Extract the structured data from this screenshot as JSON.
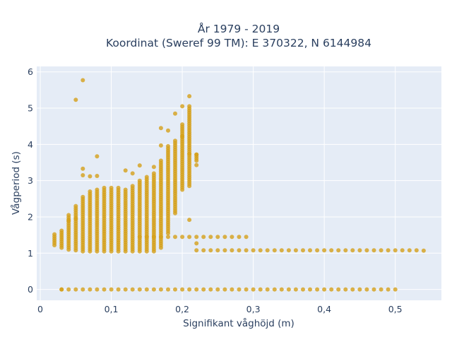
{
  "chart_data": {
    "type": "scatter",
    "title_line1": "År 1979 - 2019",
    "title_line2": "Koordinat (Sweref 99 TM): E 370322, N 6144984",
    "xlabel": "Signifikant våghöjd (m)",
    "ylabel": "Vågperiod (s)",
    "xlim": [
      -0.005,
      0.565
    ],
    "ylim": [
      -0.3,
      6.15
    ],
    "x_ticks": [
      0,
      0.1,
      0.2,
      0.3,
      0.4,
      0.5
    ],
    "x_tick_labels": [
      "0",
      "0,1",
      "0,2",
      "0,3",
      "0,4",
      "0,5"
    ],
    "y_ticks": [
      0,
      1,
      2,
      3,
      4,
      5,
      6
    ],
    "y_tick_labels": [
      "0",
      "1",
      "2",
      "3",
      "4",
      "5",
      "6"
    ],
    "grid": true,
    "colors": {
      "marker": "#d4a01a",
      "plot_bg": "#e5ecf6",
      "grid": "#ffffff"
    },
    "column_ranges": [
      [
        0.02,
        1.22,
        1.52
      ],
      [
        0.03,
        1.15,
        1.62
      ],
      [
        0.04,
        1.1,
        2.05
      ],
      [
        0.05,
        1.08,
        2.3
      ],
      [
        0.06,
        1.05,
        2.55
      ],
      [
        0.07,
        1.05,
        2.7
      ],
      [
        0.08,
        1.05,
        2.75
      ],
      [
        0.09,
        1.05,
        2.8
      ],
      [
        0.1,
        1.05,
        2.8
      ],
      [
        0.11,
        1.05,
        2.8
      ],
      [
        0.12,
        1.05,
        2.75
      ],
      [
        0.13,
        1.05,
        2.85
      ],
      [
        0.14,
        1.05,
        3.0
      ],
      [
        0.15,
        1.05,
        3.1
      ],
      [
        0.16,
        1.05,
        3.2
      ],
      [
        0.17,
        1.15,
        3.55
      ],
      [
        0.18,
        1.55,
        3.95
      ],
      [
        0.19,
        2.1,
        4.1
      ],
      [
        0.2,
        2.75,
        4.55
      ],
      [
        0.21,
        2.85,
        5.05
      ],
      [
        0.22,
        3.55,
        3.72
      ]
    ],
    "row_series": [
      {
        "y": 0.0,
        "x_from": 0.03,
        "x_to": 0.5
      },
      {
        "y": 1.08,
        "x_from": 0.22,
        "x_to": 0.53
      },
      {
        "y": 1.45,
        "x_from": 0.14,
        "x_to": 0.29
      }
    ],
    "outliers": [
      [
        0.06,
        5.77
      ],
      [
        0.05,
        5.23
      ],
      [
        0.08,
        3.67
      ],
      [
        0.06,
        3.33
      ],
      [
        0.06,
        3.15
      ],
      [
        0.07,
        3.12
      ],
      [
        0.08,
        3.13
      ],
      [
        0.12,
        3.28
      ],
      [
        0.13,
        3.2
      ],
      [
        0.14,
        3.42
      ],
      [
        0.16,
        3.38
      ],
      [
        0.17,
        3.97
      ],
      [
        0.21,
        5.33
      ],
      [
        0.21,
        3.74
      ],
      [
        0.22,
        3.72
      ],
      [
        0.22,
        3.43
      ],
      [
        0.21,
        1.92
      ],
      [
        0.22,
        1.27
      ],
      [
        0.04,
        1.9
      ],
      [
        0.05,
        1.95
      ],
      [
        0.03,
        0.0
      ],
      [
        0.54,
        1.07
      ],
      [
        0.17,
        4.45
      ],
      [
        0.19,
        4.85
      ],
      [
        0.2,
        5.05
      ],
      [
        0.18,
        4.38
      ],
      [
        0.2,
        4.22
      ]
    ]
  }
}
